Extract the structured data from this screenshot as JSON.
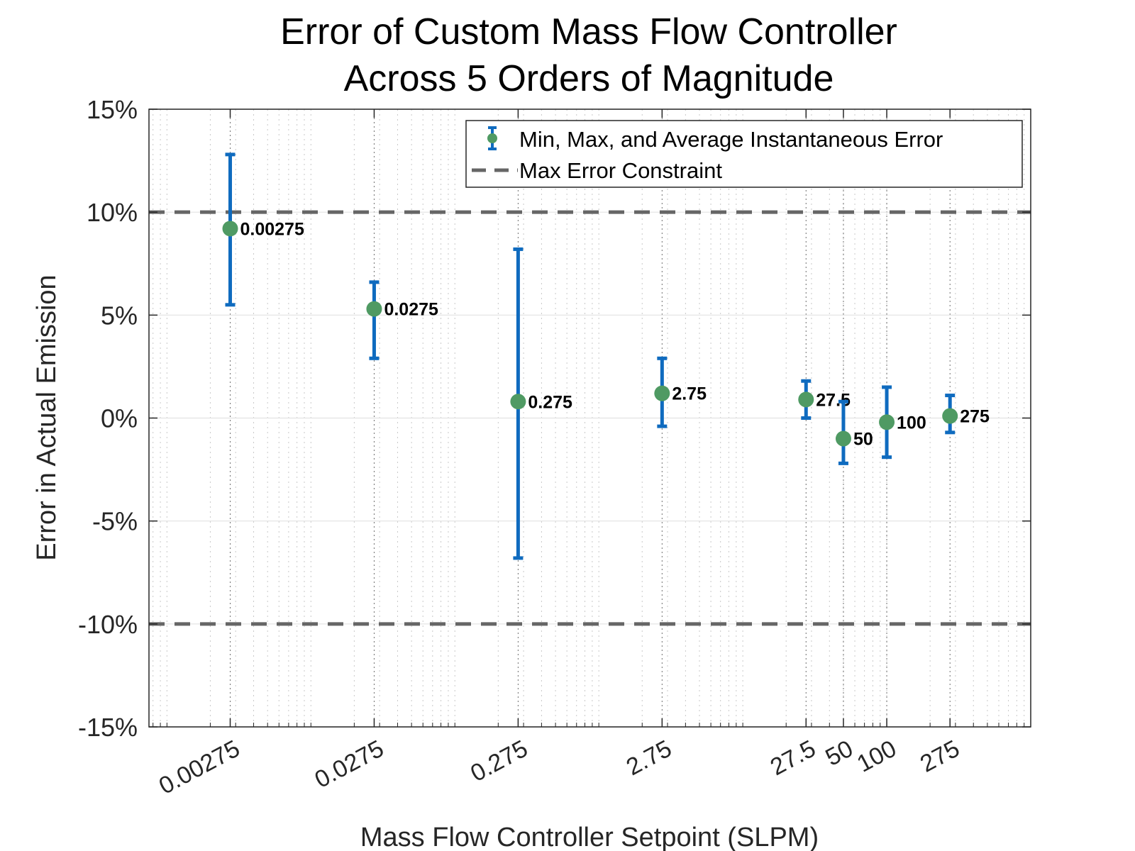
{
  "chart_data": {
    "type": "scatter",
    "title": "Error of Custom Mass Flow Controller",
    "subtitle": "Across 5 Orders of Magnitude",
    "xlabel": "Mass Flow Controller Setpoint (SLPM)",
    "ylabel": "Error in Actual Emission",
    "x_scale": "log",
    "xlim": [
      0.00075,
      1000
    ],
    "ylim": [
      -15,
      15
    ],
    "y_ticks": [
      -15,
      -10,
      -5,
      0,
      5,
      10,
      15
    ],
    "y_tick_labels": [
      "-15%",
      "-10%",
      "-5%",
      "0%",
      "5%",
      "10%",
      "15%"
    ],
    "x_ticks": [
      0.00275,
      0.0275,
      0.275,
      2.75,
      27.5,
      50,
      100,
      275
    ],
    "x_tick_labels": [
      "0.00275",
      "0.0275",
      "0.275",
      "2.75",
      "27.5",
      "50",
      "100",
      "275"
    ],
    "grid": true,
    "legend_position": "top-right",
    "series": [
      {
        "name": "Min, Max, and Average Instantaneous Error",
        "marker_color": "#4f9a63",
        "bar_color": "#0f6bbf",
        "points": [
          {
            "x": 0.00275,
            "label": "0.00275",
            "avg": 9.2,
            "min": 5.5,
            "max": 12.8
          },
          {
            "x": 0.0275,
            "label": "0.0275",
            "avg": 5.3,
            "min": 2.9,
            "max": 6.6
          },
          {
            "x": 0.275,
            "label": "0.275",
            "avg": 0.8,
            "min": -6.8,
            "max": 8.2
          },
          {
            "x": 2.75,
            "label": "2.75",
            "avg": 1.2,
            "min": -0.4,
            "max": 2.9
          },
          {
            "x": 27.5,
            "label": "27.5",
            "avg": 0.9,
            "min": 0.0,
            "max": 1.8
          },
          {
            "x": 50,
            "label": "50",
            "avg": -1.0,
            "min": -2.2,
            "max": 0.8
          },
          {
            "x": 100,
            "label": "100",
            "avg": -0.2,
            "min": -1.9,
            "max": 1.5
          },
          {
            "x": 275,
            "label": "275",
            "avg": 0.1,
            "min": -0.7,
            "max": 1.1
          }
        ]
      },
      {
        "name": "Max Error Constraint",
        "line_color": "#666666",
        "y_values": [
          10,
          -10
        ]
      }
    ]
  }
}
